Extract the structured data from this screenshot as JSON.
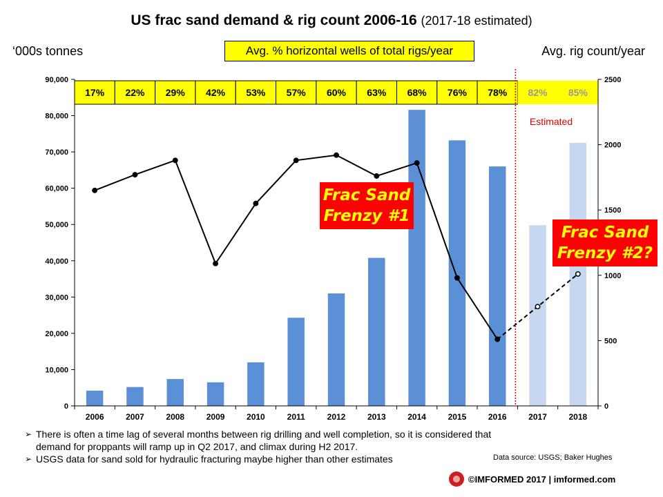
{
  "header": {
    "title": "US frac sand demand & rig count 2006-16",
    "subtitle": "(2017-18 estimated)",
    "left_axis_unit": "‘000s tonnes",
    "right_axis_unit": "Avg. rig count/year",
    "banner": "Avg. % horizontal wells of total rigs/year"
  },
  "chart_data": {
    "type": "bar",
    "categories": [
      "2006",
      "2007",
      "2008",
      "2009",
      "2010",
      "2011",
      "2012",
      "2013",
      "2014",
      "2015",
      "2016",
      "2017",
      "2018"
    ],
    "series": [
      {
        "values": [
          4200,
          5200,
          7400,
          6500,
          12000,
          24300,
          31000,
          40800,
          81600,
          73200,
          66000,
          49800,
          72500
        ],
        "type": "bar",
        "axis": "left",
        "estimated_from_index": 11,
        "color": "#5b8fd6",
        "estimated_color": "#c5d8f0"
      },
      {
        "values": [
          1650,
          1770,
          1880,
          1090,
          1550,
          1880,
          1920,
          1760,
          1860,
          980,
          510,
          760,
          1010
        ],
        "type": "line",
        "axis": "right",
        "estimated_from_index": 10,
        "color": "#000000"
      }
    ],
    "horizontal_pct": [
      "17%",
      "22%",
      "29%",
      "42%",
      "53%",
      "57%",
      "60%",
      "63%",
      "68%",
      "76%",
      "78%",
      "82%",
      "85%"
    ],
    "ylim_left": [
      0,
      90000
    ],
    "yticks_left": [
      "0",
      "10,000",
      "20,000",
      "30,000",
      "40,000",
      "50,000",
      "60,000",
      "70,000",
      "80,000",
      "90,000"
    ],
    "ylim_right": [
      0,
      2500
    ],
    "yticks_right": [
      "0",
      "500",
      "1000",
      "1500",
      "2000",
      "2500"
    ],
    "estimated_label": "Estimated",
    "callout_1": [
      "Frac Sand",
      "Frenzy #1"
    ],
    "callout_2": [
      "Frac Sand",
      "Frenzy #2?"
    ]
  },
  "notes": [
    "There is often a time lag of several months between rig drilling and well completion, so it is considered that demand for proppants will ramp up in Q2 2017, and climax during H2 2017.",
    "USGS data for sand sold for hydraulic fracturing maybe higher than other estimates"
  ],
  "source": "Data source: USGS; Baker Hughes",
  "footer": "©IMFORMED 2017  | imformed.com"
}
